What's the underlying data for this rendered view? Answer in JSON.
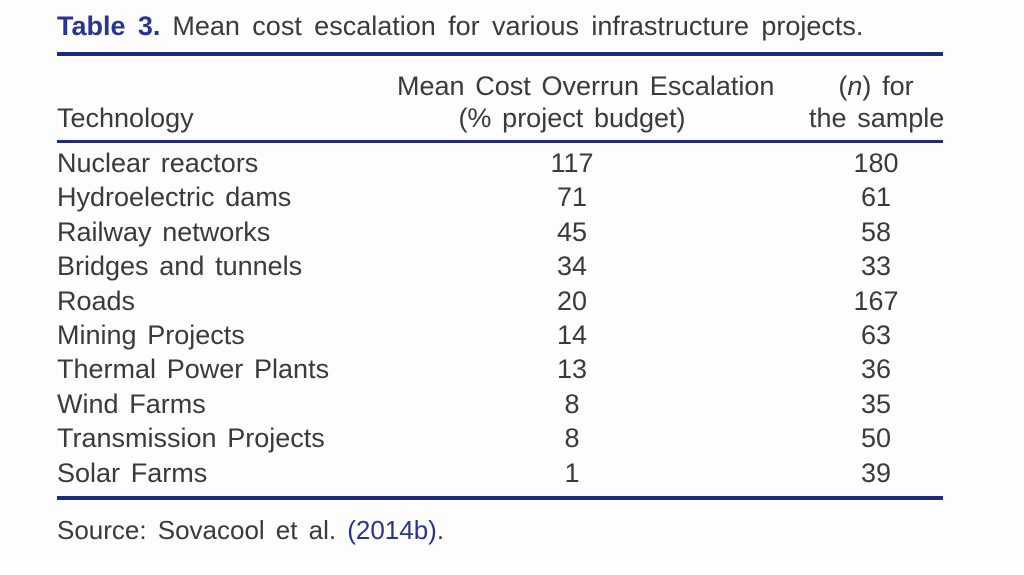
{
  "colors": {
    "accent_navy": "#2a3590",
    "rule_navy": "#1f2a7a",
    "body_text": "#3a3a3a",
    "background": "#fdfdfd"
  },
  "table": {
    "label": "Table 3.",
    "caption": "Mean cost escalation for various infrastructure projects.",
    "header": {
      "technology": "Technology",
      "escalation_line1": "Mean Cost Overrun Escalation",
      "escalation_line2": "(% project budget)",
      "sample_open_paren": "(",
      "sample_n": "n",
      "sample_after_paren": ") for",
      "sample_line2": "the sample"
    },
    "rows": [
      {
        "technology": "Nuclear reactors",
        "escalation": "117",
        "sample": "180"
      },
      {
        "technology": "Hydroelectric dams",
        "escalation": "71",
        "sample": "61"
      },
      {
        "technology": "Railway networks",
        "escalation": "45",
        "sample": "58"
      },
      {
        "technology": "Bridges and tunnels",
        "escalation": "34",
        "sample": "33"
      },
      {
        "technology": "Roads",
        "escalation": "20",
        "sample": "167"
      },
      {
        "technology": "Mining Projects",
        "escalation": "14",
        "sample": "63"
      },
      {
        "technology": "Thermal Power Plants",
        "escalation": "13",
        "sample": "36"
      },
      {
        "technology": "Wind Farms",
        "escalation": "8",
        "sample": "35"
      },
      {
        "technology": "Transmission Projects",
        "escalation": "8",
        "sample": "50"
      },
      {
        "technology": "Solar Farms",
        "escalation": "1",
        "sample": "39"
      }
    ],
    "source": {
      "prefix": "Source: Sovacool et al. ",
      "link": "(2014b)",
      "suffix": "."
    }
  }
}
